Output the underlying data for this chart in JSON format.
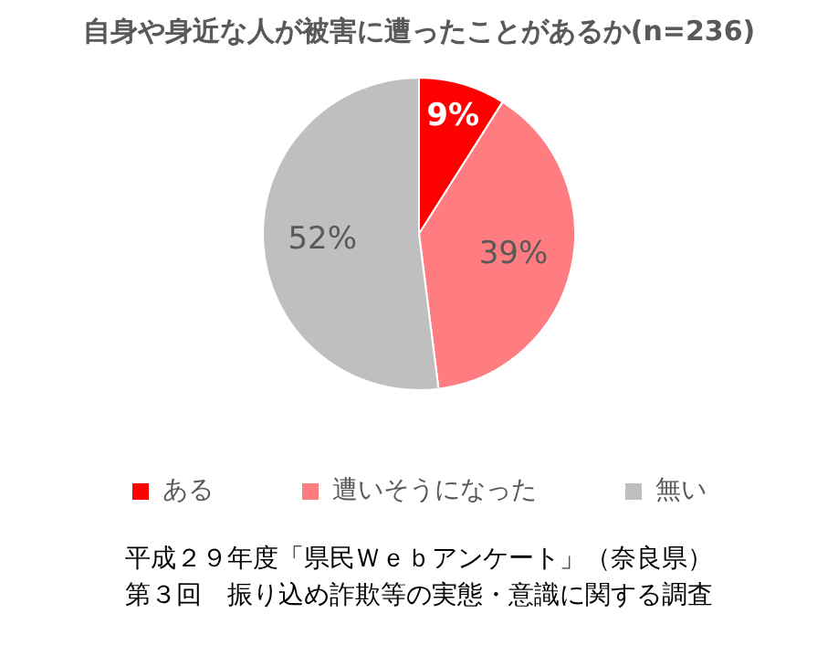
{
  "chart_data": {
    "type": "pie",
    "title": "自身や身近な人が被害に遭ったことがあるか(n=236)",
    "categories": [
      "ある",
      "遭いそうになった",
      "無い"
    ],
    "values": [
      9,
      39,
      52
    ],
    "value_labels": [
      "9%",
      "39%",
      "52%"
    ],
    "colors": [
      "#ff0000",
      "#ff7c80",
      "#bfbfbf"
    ],
    "legend": "bottom",
    "annotations": [
      "平成２９年度「県民Ｗｅｂアンケート」（奈良県）",
      "第３回　振り込め詐欺等の実態・意識に関する調査"
    ]
  }
}
